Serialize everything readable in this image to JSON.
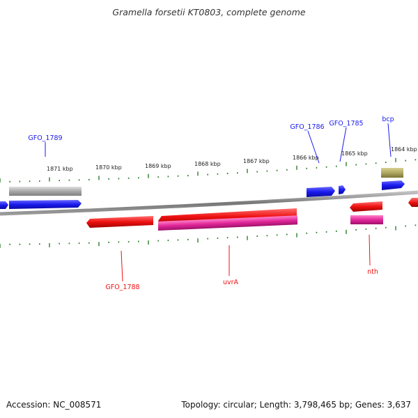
{
  "title": "Gramella forsetii KT0803, complete genome",
  "footer": {
    "accession": "Accession: NC_008571",
    "summary": "Topology: circular; Length: 3,798,465 bp; Genes: 3,637"
  },
  "scale_labels": [
    "1871 kbp",
    "1870 kbp",
    "1869 kbp",
    "1868 kbp",
    "1867 kbp",
    "1866 kbp",
    "1865 kbp",
    "1864 kbp"
  ],
  "genes": [
    {
      "name": "GFO_1789",
      "strand": "plus",
      "color": "#1a1aee"
    },
    {
      "name": "GFO_1786",
      "strand": "plus",
      "color": "#1a1aee"
    },
    {
      "name": "GFO_1785",
      "strand": "plus",
      "color": "#1a1aee"
    },
    {
      "name": "bcp",
      "strand": "plus",
      "color": "#1a1aee"
    },
    {
      "name": "GFO_1788",
      "strand": "minus",
      "color": "#ee1111"
    },
    {
      "name": "uvrA",
      "strand": "minus",
      "color": "#ee1111"
    },
    {
      "name": "nth",
      "strand": "minus",
      "color": "#ee1111"
    }
  ],
  "colors": {
    "backbone": "#8a8a8a",
    "plus_strand": "#1a1aee",
    "minus_strand": "#ee1111",
    "cds_minus": "#e2289a",
    "rna_feature": "#b0a860",
    "gene_grey": "#a8a8a8",
    "tick": "#2e7d2e"
  }
}
